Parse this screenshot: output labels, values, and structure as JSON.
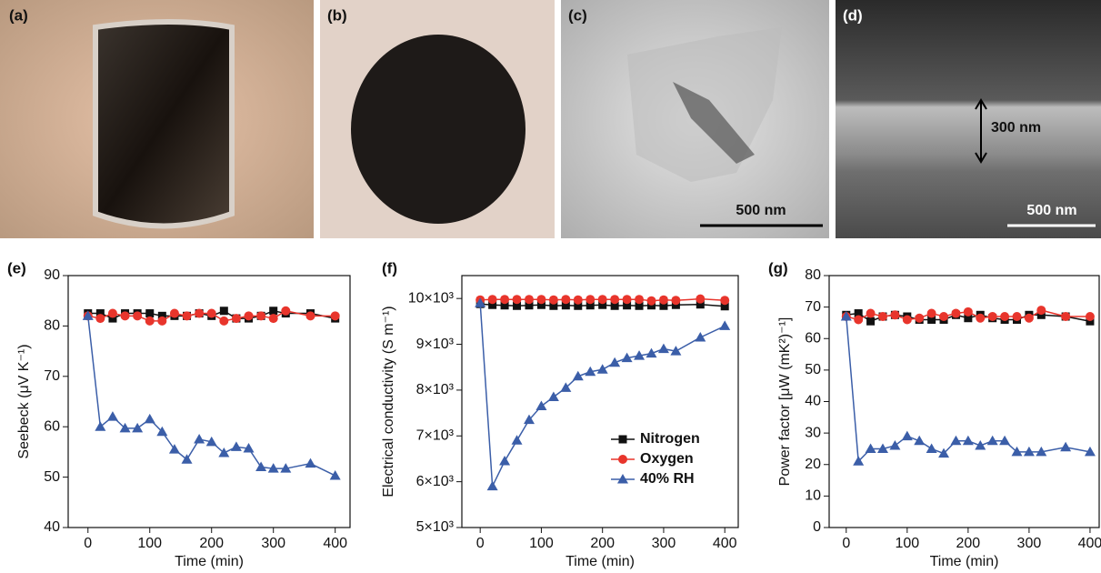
{
  "images": [
    {
      "label": "(a)"
    },
    {
      "label": "(b)"
    },
    {
      "label": "(c)",
      "scale_bar": "500 nm"
    },
    {
      "label": "(d)",
      "annotation": "300 nm",
      "scale_bar": "500 nm"
    }
  ],
  "chart_data": [
    {
      "type": "line",
      "panel": "(e)",
      "x_label": "Time (min)",
      "y_label": "Seebeck (μV K⁻¹)",
      "x": [
        0,
        20,
        40,
        60,
        80,
        100,
        120,
        140,
        160,
        180,
        200,
        220,
        240,
        260,
        280,
        300,
        320,
        360,
        400
      ],
      "series": [
        {
          "color": "#111111",
          "marker": "square",
          "values": [
            82.5,
            82.5,
            81.5,
            82.5,
            82.5,
            82.5,
            82,
            82,
            82,
            82.5,
            82,
            83,
            81.5,
            81.5,
            82,
            83,
            82.5,
            82.5,
            81.5
          ]
        },
        {
          "color": "#e8352c",
          "marker": "circle",
          "values": [
            82,
            81.5,
            82.5,
            82,
            82,
            81,
            81,
            82.5,
            82,
            82.5,
            82.5,
            81,
            81.5,
            82,
            82,
            81.5,
            83,
            82,
            82
          ]
        },
        {
          "color": "#3b5ea8",
          "marker": "triangle",
          "values": [
            82,
            60,
            62,
            59.7,
            59.7,
            61.5,
            59,
            55.5,
            53.5,
            57.5,
            57,
            54.8,
            56,
            55.7,
            52,
            51.7,
            51.7,
            52.7,
            50.3
          ]
        }
      ],
      "xlim": [
        -32,
        424
      ],
      "xticks": [
        0,
        100,
        200,
        300,
        400
      ],
      "ylim": [
        40,
        90
      ],
      "yticks": [
        40,
        50,
        60,
        70,
        80,
        90
      ]
    },
    {
      "type": "line",
      "panel": "(f)",
      "x_label": "Time (min)",
      "y_label": "Electrical conductivity (S m⁻¹)",
      "x": [
        0,
        20,
        40,
        60,
        80,
        100,
        120,
        140,
        160,
        180,
        200,
        220,
        240,
        260,
        280,
        300,
        320,
        360,
        400
      ],
      "series": [
        {
          "name": "Nitrogen",
          "color": "#111111",
          "marker": "square",
          "values": [
            9880,
            9860,
            9850,
            9840,
            9850,
            9860,
            9840,
            9850,
            9840,
            9850,
            9860,
            9840,
            9850,
            9840,
            9850,
            9840,
            9860,
            9870,
            9830
          ]
        },
        {
          "name": "Oxygen",
          "color": "#e8352c",
          "marker": "circle",
          "values": [
            9970,
            9980,
            9980,
            9980,
            9980,
            9980,
            9970,
            9980,
            9970,
            9980,
            9980,
            9980,
            9980,
            9980,
            9950,
            9970,
            9960,
            9990,
            9960
          ]
        },
        {
          "name": "40% RH",
          "color": "#3b5ea8",
          "marker": "triangle",
          "values": [
            9900,
            5900,
            6450,
            6900,
            7350,
            7650,
            7850,
            8050,
            8300,
            8400,
            8450,
            8600,
            8700,
            8750,
            8800,
            8900,
            8850,
            9150,
            9400
          ]
        }
      ],
      "xlim": [
        -30,
        422
      ],
      "xticks": [
        0,
        100,
        200,
        300,
        400
      ],
      "ylim": [
        5000,
        10500
      ],
      "yticks": [
        {
          "value": 5000,
          "label": "5×10³"
        },
        {
          "value": 6000,
          "label": "6×10³"
        },
        {
          "value": 7000,
          "label": "7×10³"
        },
        {
          "value": 8000,
          "label": "8×10³"
        },
        {
          "value": 9000,
          "label": "9×10³"
        },
        {
          "value": 10000,
          "label": "10×10³"
        }
      ],
      "legend": "lower right"
    },
    {
      "type": "line",
      "panel": "(g)",
      "x_label": "Time (min)",
      "y_label": "Power factor [μW (mK²)⁻¹]",
      "x": [
        0,
        20,
        40,
        60,
        80,
        100,
        120,
        140,
        160,
        180,
        200,
        220,
        240,
        260,
        280,
        300,
        320,
        360,
        400
      ],
      "series": [
        {
          "color": "#111111",
          "marker": "square",
          "values": [
            67.5,
            68,
            65.5,
            67,
            67.5,
            67,
            66,
            66,
            66,
            67.5,
            66.5,
            67.5,
            66.5,
            66,
            66,
            67.5,
            67.5,
            67,
            65.5
          ]
        },
        {
          "color": "#e8352c",
          "marker": "circle",
          "values": [
            67,
            66,
            68,
            67,
            67.5,
            66,
            66.5,
            68,
            67,
            68,
            68.5,
            66.5,
            67,
            67,
            67,
            66.5,
            69,
            67,
            67
          ]
        },
        {
          "color": "#3b5ea8",
          "marker": "triangle",
          "values": [
            67,
            21,
            25,
            25,
            26,
            29,
            27.5,
            25,
            23.5,
            27.5,
            27.5,
            26,
            27.5,
            27.5,
            24,
            24,
            24,
            25.5,
            24
          ]
        }
      ],
      "xlim": [
        -28,
        415
      ],
      "xticks": [
        0,
        100,
        200,
        300,
        400
      ],
      "ylim": [
        0,
        80
      ],
      "yticks": [
        0,
        10,
        20,
        30,
        40,
        50,
        60,
        70,
        80
      ]
    }
  ]
}
